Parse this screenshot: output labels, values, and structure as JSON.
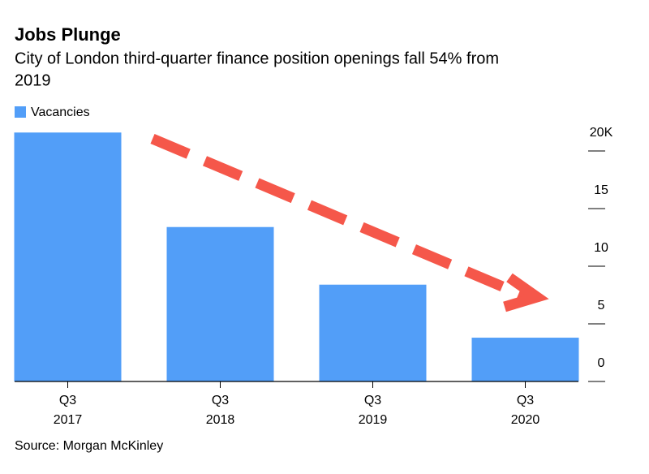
{
  "chart_data": {
    "type": "bar",
    "title": "Jobs Plunge",
    "subtitle": [
      "City of London third-quarter finance position openings fall 54% from",
      "2019"
    ],
    "source": "Source: Morgan McKinley",
    "categories": [
      [
        "Q3",
        "2017"
      ],
      [
        "Q3",
        "2018"
      ],
      [
        "Q3",
        "2019"
      ],
      [
        "Q3",
        "2020"
      ]
    ],
    "series": [
      {
        "name": "Vacancies",
        "color": "#529ef8",
        "values": [
          21.6,
          13.4,
          8.4,
          3.8
        ]
      }
    ],
    "ylim": [
      0,
      22
    ],
    "yticks": [
      0,
      5,
      10,
      15,
      {
        "value": 20,
        "label": "20K"
      }
    ],
    "yaxis_side": "right",
    "legend": "top-left"
  }
}
